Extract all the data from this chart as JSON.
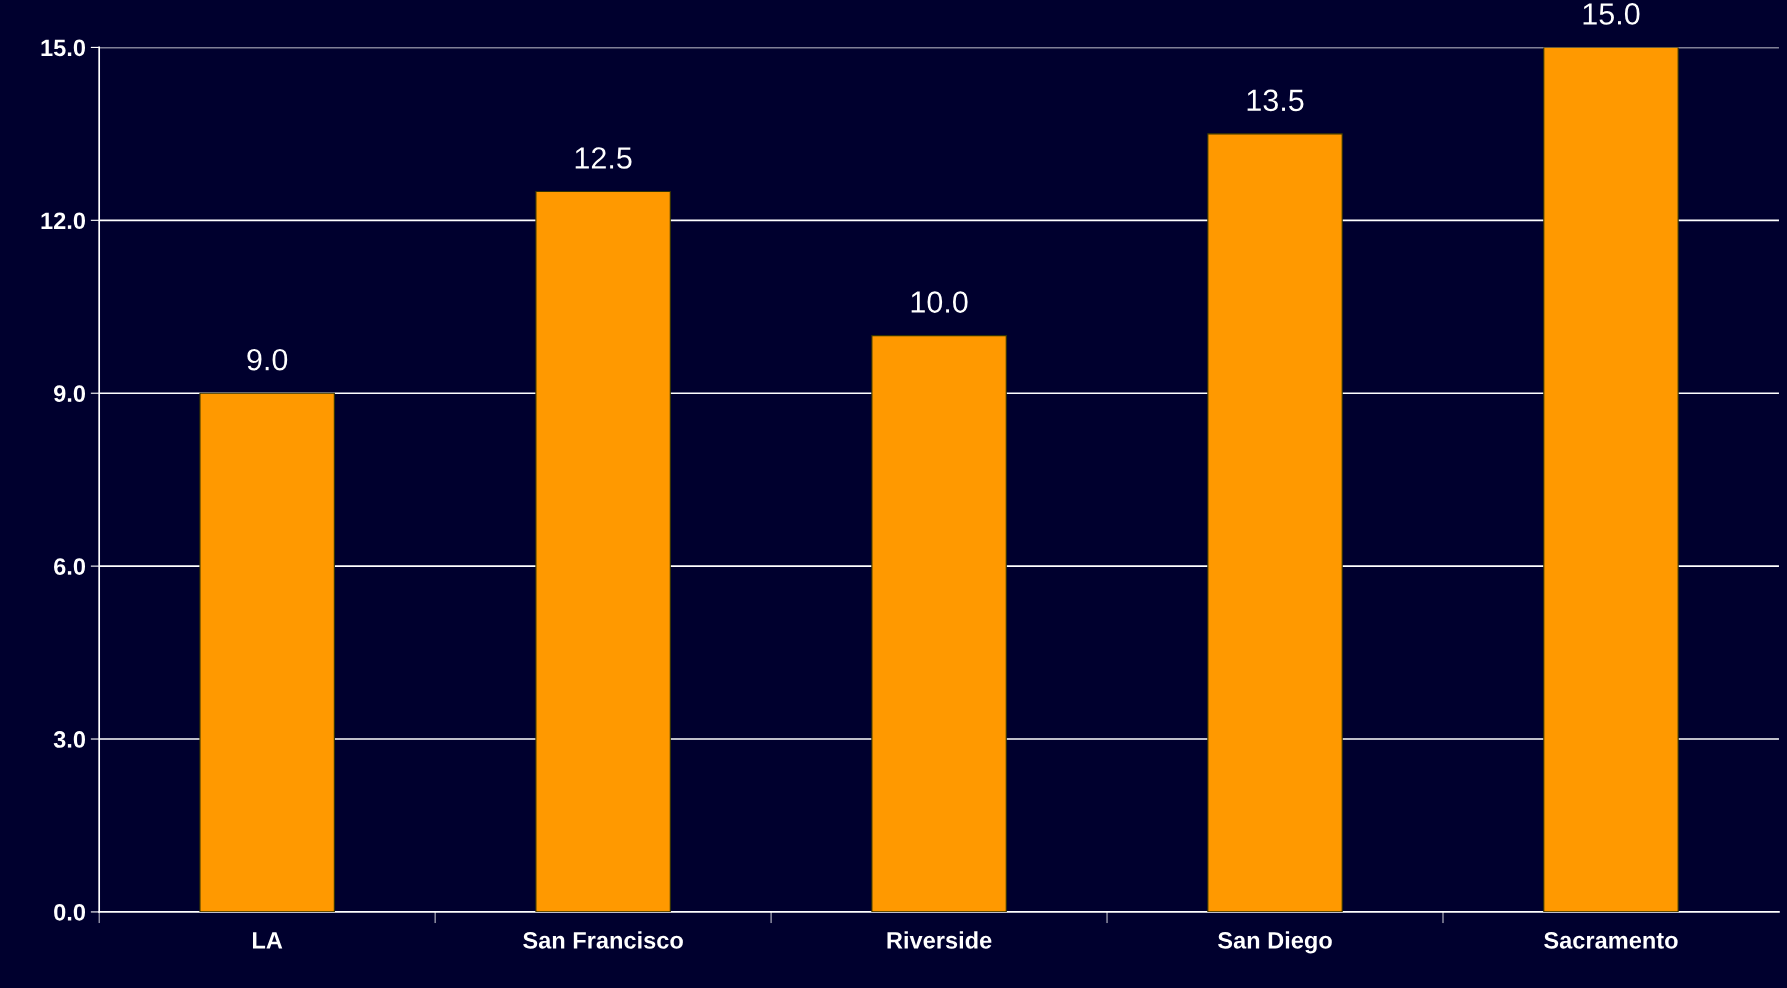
{
  "chart_data": {
    "type": "bar",
    "categories": [
      "LA",
      "San Francisco",
      "Riverside",
      "San Diego",
      "Sacramento"
    ],
    "values": [
      9.0,
      12.5,
      10.0,
      13.5,
      15.0
    ],
    "color": "#ff9900",
    "ylim": [
      0,
      15
    ],
    "yticks": [
      {
        "value": 0,
        "label": "0.0"
      },
      {
        "value": 3,
        "label": "3.0"
      },
      {
        "value": 6,
        "label": "6.0"
      },
      {
        "value": 9,
        "label": "9.0"
      },
      {
        "value": 12,
        "label": "12.0"
      },
      {
        "value": 15,
        "label": "15.0"
      }
    ],
    "grid": "y",
    "value_labels": [
      "9.0",
      "12.5",
      "10.0",
      "13.5",
      "15.0"
    ]
  }
}
